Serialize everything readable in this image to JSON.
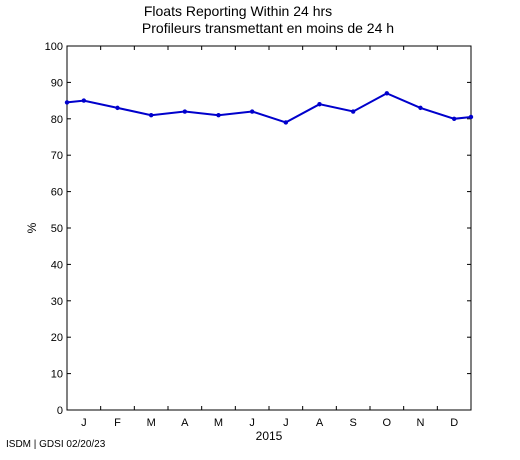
{
  "chart_data": {
    "type": "line",
    "title": "Floats Reporting Within 24 hrs",
    "subtitle": "Profileurs transmettant en moins de 24 h",
    "ylabel": "%",
    "xlabel": "2015",
    "ylim": [
      0,
      100
    ],
    "yticks": [
      0,
      10,
      20,
      30,
      40,
      50,
      60,
      70,
      80,
      90,
      100
    ],
    "xticks": [
      "J",
      "F",
      "M",
      "A",
      "M",
      "J",
      "J",
      "A",
      "S",
      "O",
      "N",
      "D"
    ],
    "grid": false,
    "color": "#0000cc",
    "series": [
      {
        "x": [
          0.5,
          1,
          2,
          3,
          4,
          5,
          6,
          7,
          8,
          9,
          10,
          11,
          12,
          12.5
        ],
        "values": [
          84.5,
          85,
          83,
          81,
          82,
          81,
          82,
          79,
          84,
          82,
          87,
          83,
          80,
          80.5
        ]
      }
    ]
  },
  "footer": "ISDM | GDSI 02/20/23"
}
